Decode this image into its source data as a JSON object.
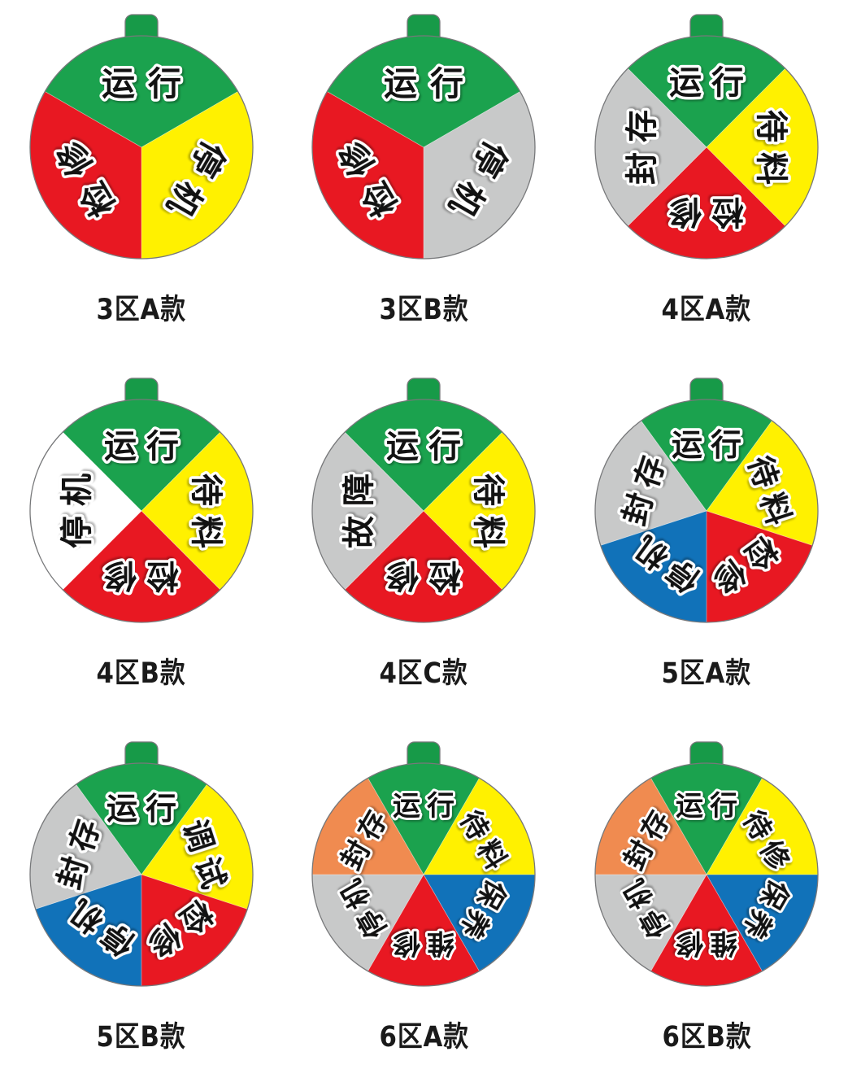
{
  "page": {
    "background": "#ffffff"
  },
  "colors": {
    "green": "#1BA24E",
    "tab_green": "#179A48",
    "red": "#E81822",
    "yellow": "#FFF100",
    "gray": "#C8C9C9",
    "white": "#FFFFFF",
    "blue": "#1172B9",
    "orange": "#F08B50",
    "outline": "#77787A",
    "label_text": "#121212",
    "label_halo": "#FFFFFF",
    "caption_color": "#1A1A1A"
  },
  "wheels": [
    {
      "id": "3a",
      "caption": "3区A款",
      "zones": 3,
      "sectors": [
        {
          "label": "运行",
          "color": "green"
        },
        {
          "label": "停机",
          "color": "yellow"
        },
        {
          "label": "检修",
          "color": "red"
        }
      ]
    },
    {
      "id": "3b",
      "caption": "3区B款",
      "zones": 3,
      "sectors": [
        {
          "label": "运行",
          "color": "green"
        },
        {
          "label": "停机",
          "color": "gray"
        },
        {
          "label": "检修",
          "color": "red"
        }
      ]
    },
    {
      "id": "4a",
      "caption": "4区A款",
      "zones": 4,
      "sectors": [
        {
          "label": "运行",
          "color": "green"
        },
        {
          "label": "待料",
          "color": "yellow"
        },
        {
          "label": "检修",
          "color": "red"
        },
        {
          "label": "封存",
          "color": "gray"
        }
      ]
    },
    {
      "id": "4b",
      "caption": "4区B款",
      "zones": 4,
      "sectors": [
        {
          "label": "运行",
          "color": "green"
        },
        {
          "label": "待料",
          "color": "yellow"
        },
        {
          "label": "检修",
          "color": "red"
        },
        {
          "label": "停机",
          "color": "white"
        }
      ]
    },
    {
      "id": "4c",
      "caption": "4区C款",
      "zones": 4,
      "sectors": [
        {
          "label": "运行",
          "color": "green"
        },
        {
          "label": "待料",
          "color": "yellow"
        },
        {
          "label": "检修",
          "color": "red"
        },
        {
          "label": "故障",
          "color": "gray"
        }
      ]
    },
    {
      "id": "5a",
      "caption": "5区A款",
      "zones": 5,
      "sectors": [
        {
          "label": "运行",
          "color": "green"
        },
        {
          "label": "待料",
          "color": "yellow"
        },
        {
          "label": "检修",
          "color": "red"
        },
        {
          "label": "停机",
          "color": "blue"
        },
        {
          "label": "封存",
          "color": "gray"
        }
      ]
    },
    {
      "id": "5b",
      "caption": "5区B款",
      "zones": 5,
      "sectors": [
        {
          "label": "运行",
          "color": "green"
        },
        {
          "label": "调试",
          "color": "yellow"
        },
        {
          "label": "检修",
          "color": "red"
        },
        {
          "label": "停机",
          "color": "blue"
        },
        {
          "label": "封存",
          "color": "gray"
        }
      ]
    },
    {
      "id": "6a",
      "caption": "6区A款",
      "zones": 6,
      "sectors": [
        {
          "label": "运行",
          "color": "green"
        },
        {
          "label": "待料",
          "color": "yellow"
        },
        {
          "label": "保养",
          "color": "blue"
        },
        {
          "label": "维修",
          "color": "red"
        },
        {
          "label": "停机",
          "color": "gray"
        },
        {
          "label": "封存",
          "color": "orange"
        }
      ]
    },
    {
      "id": "6b",
      "caption": "6区B款",
      "zones": 6,
      "sectors": [
        {
          "label": "运行",
          "color": "green"
        },
        {
          "label": "待修",
          "color": "yellow"
        },
        {
          "label": "保养",
          "color": "blue"
        },
        {
          "label": "维修",
          "color": "red"
        },
        {
          "label": "停机",
          "color": "gray"
        },
        {
          "label": "封存",
          "color": "orange"
        }
      ]
    }
  ]
}
